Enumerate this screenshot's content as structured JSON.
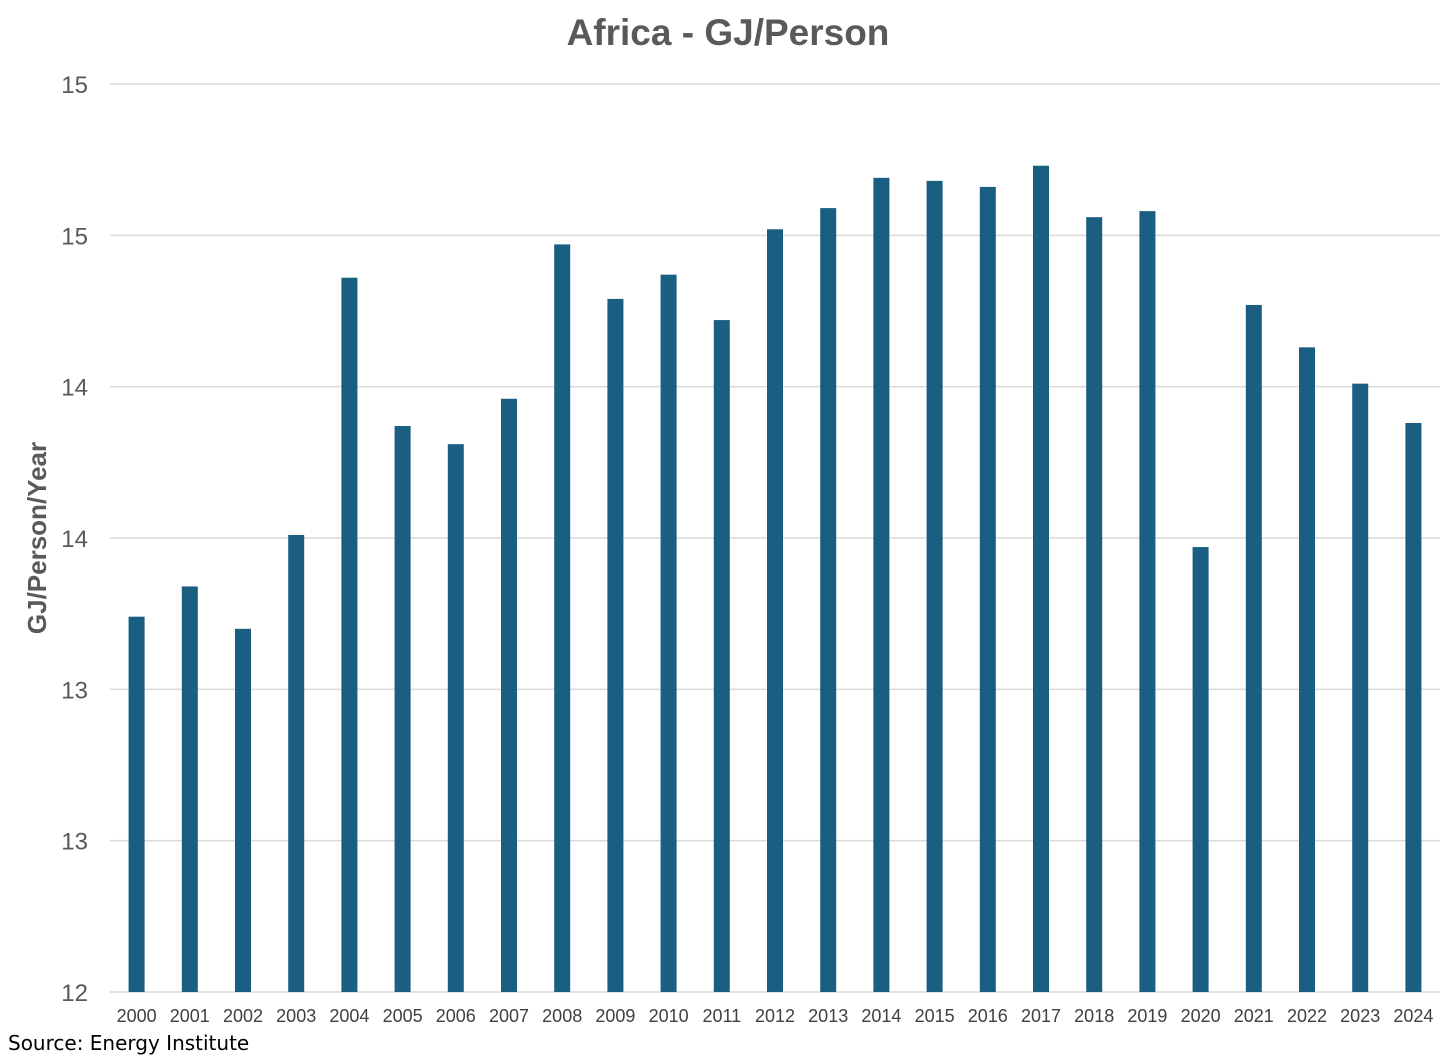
{
  "chart_data": {
    "type": "bar",
    "title": "Africa - GJ/Person",
    "xlabel": "",
    "ylabel": "GJ/Person/Year",
    "source": "Source: Energy Institute",
    "ylim": [
      12,
      15
    ],
    "yticks": [
      12,
      12.5,
      13,
      13.5,
      14,
      14.5,
      15
    ],
    "ytick_labels": [
      "12",
      "13",
      "13",
      "14",
      "14",
      "15",
      "15"
    ],
    "grid": true,
    "bar_color": "#1A5E82",
    "grid_color": "#D9D9D9",
    "categories": [
      "2000",
      "2001",
      "2002",
      "2003",
      "2004",
      "2005",
      "2006",
      "2007",
      "2008",
      "2009",
      "2010",
      "2011",
      "2012",
      "2013",
      "2014",
      "2015",
      "2016",
      "2017",
      "2018",
      "2019",
      "2020",
      "2021",
      "2022",
      "2023",
      "2024"
    ],
    "values": [
      13.24,
      13.34,
      13.2,
      13.51,
      14.36,
      13.87,
      13.81,
      13.96,
      14.47,
      14.29,
      14.37,
      14.22,
      14.52,
      14.59,
      14.69,
      14.68,
      14.66,
      14.73,
      14.56,
      14.58,
      13.47,
      14.27,
      14.13,
      14.01,
      13.88
    ]
  }
}
